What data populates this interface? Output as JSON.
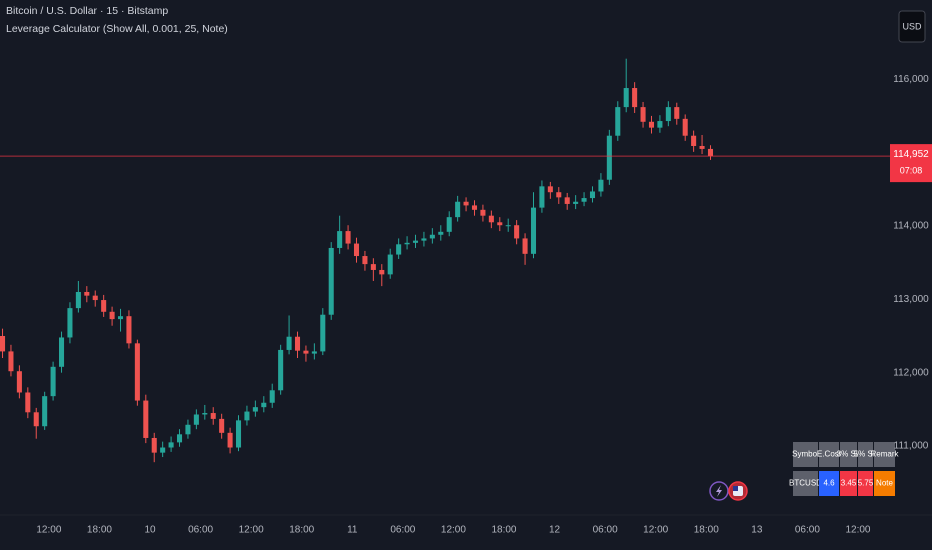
{
  "header": {
    "symbol": "Bitcoin / U.S. Dollar · 15 · Bitstamp",
    "indicator": "Leverage Calculator (Show All, 0.001, 25, Note)",
    "currency": "USD"
  },
  "chart_data": {
    "type": "candlestick",
    "up_color": "#26a69a",
    "down_color": "#ef5350",
    "grid": false,
    "xlim": [
      -17.8,
      87.8
    ],
    "ylim": [
      110060,
      117080
    ],
    "xticks": [
      {
        "value": -12,
        "label": "12:00"
      },
      {
        "value": -6,
        "label": "18:00"
      },
      {
        "value": 0,
        "label": "10"
      },
      {
        "value": 6,
        "label": "06:00"
      },
      {
        "value": 12,
        "label": "12:00"
      },
      {
        "value": 18,
        "label": "18:00"
      },
      {
        "value": 24,
        "label": "11"
      },
      {
        "value": 30,
        "label": "06:00"
      },
      {
        "value": 36,
        "label": "12:00"
      },
      {
        "value": 42,
        "label": "18:00"
      },
      {
        "value": 48,
        "label": "12"
      },
      {
        "value": 54,
        "label": "06:00"
      },
      {
        "value": 60,
        "label": "12:00"
      },
      {
        "value": 66,
        "label": "18:00"
      },
      {
        "value": 72,
        "label": "13"
      },
      {
        "value": 78,
        "label": "06:00"
      },
      {
        "value": 84,
        "label": "12:00"
      }
    ],
    "yticks": [
      {
        "value": 111000,
        "label": "111,000"
      },
      {
        "value": 112000,
        "label": "112,000"
      },
      {
        "value": 113000,
        "label": "113,000"
      },
      {
        "value": 114000,
        "label": "114,000"
      },
      {
        "value": 116000,
        "label": "116,000"
      }
    ],
    "x": [
      -17.5,
      -16.5,
      -15.5,
      -14.5,
      -13.5,
      -12.5,
      -11.5,
      -10.5,
      -9.5,
      -8.5,
      -7.5,
      -6.5,
      -5.5,
      -4.5,
      -3.5,
      -2.5,
      -1.5,
      -0.5,
      0.5,
      1.5,
      2.5,
      3.5,
      4.5,
      5.5,
      6.5,
      7.5,
      8.5,
      9.5,
      10.5,
      11.5,
      12.5,
      13.5,
      14.5,
      15.5,
      16.5,
      17.5,
      18.5,
      19.5,
      20.5,
      21.5,
      22.5,
      23.5,
      24.5,
      25.5,
      26.5,
      27.5,
      28.5,
      29.5,
      30.5,
      31.5,
      32.5,
      33.5,
      34.5,
      35.5,
      36.5,
      37.5,
      38.5,
      39.5,
      40.5,
      41.5,
      42.5,
      43.5,
      44.5,
      45.5,
      46.5,
      47.5,
      48.5,
      49.5,
      50.5,
      51.5,
      52.5,
      53.5,
      54.5,
      55.5,
      56.5,
      57.5,
      58.5,
      59.5,
      60.5,
      61.5,
      62.5,
      63.5,
      64.5,
      65.5,
      66.5
    ],
    "open": [
      112500,
      112290,
      112020,
      111730,
      111460,
      111270,
      111680,
      112080,
      112480,
      112880,
      113100,
      113050,
      112990,
      112830,
      112730,
      112770,
      112400,
      111620,
      111110,
      110910,
      110980,
      111050,
      111160,
      111290,
      111430,
      111450,
      111370,
      111180,
      110980,
      111350,
      111470,
      111530,
      111590,
      111760,
      112310,
      112490,
      112300,
      112260,
      112290,
      112790,
      113700,
      113930,
      113760,
      113590,
      113480,
      113400,
      113340,
      113610,
      113750,
      113770,
      113800,
      113830,
      113880,
      113920,
      114120,
      114330,
      114280,
      114220,
      114140,
      114050,
      114010,
      114010,
      113830,
      113620,
      114250,
      114540,
      114460,
      114390,
      114300,
      114330,
      114380,
      114470,
      114630,
      115230,
      115620,
      115880,
      115620,
      115420,
      115340,
      115430,
      115620,
      115460,
      115230,
      115090,
      115050
    ],
    "high": [
      112600,
      112380,
      112100,
      111800,
      111520,
      111740,
      112150,
      112560,
      112960,
      113250,
      113180,
      113120,
      113060,
      112900,
      112870,
      112850,
      112450,
      111700,
      111180,
      111060,
      111130,
      111230,
      111360,
      111500,
      111560,
      111530,
      111440,
      111250,
      111420,
      111550,
      111620,
      111680,
      111850,
      112380,
      112780,
      112560,
      112370,
      112400,
      112880,
      113780,
      114140,
      114010,
      113840,
      113660,
      113560,
      113480,
      113690,
      113830,
      113860,
      113880,
      113920,
      113970,
      114010,
      114200,
      114410,
      114390,
      114350,
      114290,
      114210,
      114120,
      114100,
      114080,
      113900,
      114460,
      114620,
      114600,
      114530,
      114450,
      114420,
      114460,
      114540,
      114720,
      115310,
      115700,
      116280,
      115960,
      115690,
      115500,
      115510,
      115700,
      115680,
      115520,
      115300,
      115240,
      115100
    ],
    "low": [
      112200,
      111950,
      111650,
      111380,
      111100,
      111220,
      111620,
      112000,
      112400,
      112820,
      112960,
      112900,
      112760,
      112640,
      112560,
      112330,
      111550,
      111040,
      110780,
      110850,
      110920,
      110990,
      111100,
      111230,
      111360,
      111290,
      111100,
      110900,
      110930,
      111280,
      111400,
      111460,
      111520,
      111700,
      112250,
      112200,
      112150,
      112180,
      112240,
      112720,
      113620,
      113680,
      113500,
      113390,
      113250,
      113180,
      113280,
      113550,
      113680,
      113700,
      113720,
      113760,
      113800,
      113860,
      114060,
      114200,
      114140,
      114060,
      113970,
      113930,
      113920,
      113750,
      113470,
      113560,
      114180,
      114370,
      114300,
      114220,
      114230,
      114270,
      114320,
      114400,
      114560,
      115160,
      115550,
      115540,
      115340,
      115260,
      115270,
      115360,
      115380,
      115160,
      115010,
      114980,
      114900
    ],
    "close": [
      112290,
      112020,
      111730,
      111460,
      111270,
      111680,
      112080,
      112480,
      112880,
      113100,
      113050,
      112990,
      112830,
      112730,
      112770,
      112400,
      111620,
      111110,
      110910,
      110980,
      111050,
      111160,
      111290,
      111430,
      111450,
      111370,
      111180,
      110980,
      111350,
      111470,
      111530,
      111590,
      111760,
      112310,
      112490,
      112300,
      112260,
      112290,
      112790,
      113700,
      113930,
      113760,
      113590,
      113480,
      113400,
      113340,
      113610,
      113750,
      113770,
      113800,
      113830,
      113880,
      113920,
      114120,
      114330,
      114280,
      114220,
      114140,
      114050,
      114010,
      114010,
      113830,
      113620,
      114250,
      114540,
      114460,
      114390,
      114300,
      114330,
      114380,
      114470,
      114630,
      115230,
      115620,
      115880,
      115620,
      115420,
      115340,
      115430,
      115620,
      115460,
      115230,
      115090,
      115050,
      114952
    ],
    "last_price": {
      "value": 114952,
      "label": "114,952",
      "color": "#f23645"
    },
    "countdown": "07:08"
  },
  "table": {
    "header": [
      "Symbol",
      "E.Cost",
      "3% SL",
      "5% SL",
      "Remark"
    ],
    "rows": [
      [
        "BTCUSD",
        "4.6",
        "3.45",
        "5.75",
        "Note"
      ]
    ],
    "colors": [
      [
        "#5d606b",
        "#5d606b",
        "#5d606b",
        "#5d606b",
        "#5d606b"
      ],
      [
        "#5d606b",
        "#2962ff",
        "#f23645",
        "#f23645",
        "#f57c00"
      ]
    ]
  }
}
